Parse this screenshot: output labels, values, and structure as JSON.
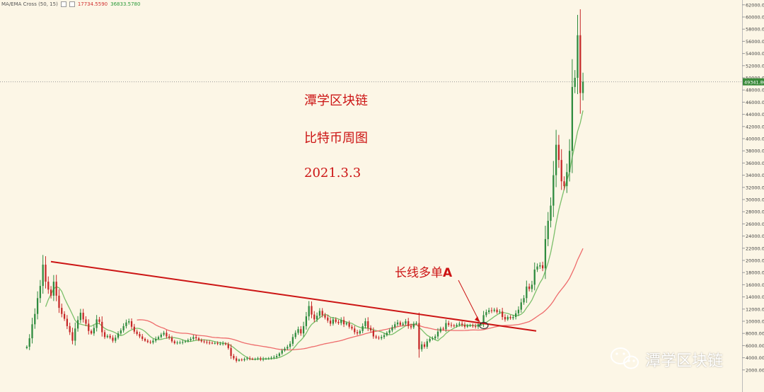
{
  "legend": {
    "indicator": "MA/EMA Cross (50, 15)",
    "value1": "17734.5590",
    "value2": "36833.5780"
  },
  "annotations": {
    "title": "潭学区块链",
    "subtitle": "比特币周图",
    "date": "2021.3.3",
    "long_label": "长线多单",
    "long_label_suffix": "A"
  },
  "watermark": {
    "text": "潭学区块链",
    "icon": "wechat-icon"
  },
  "colors": {
    "background": "#fcf6e6",
    "up": "#2e8b3e",
    "down": "#c62828",
    "ma_fast": "#7bbf6a",
    "ma_slow": "#ee6b6b",
    "trendline": "#cc1414",
    "annotation": "#cc1414"
  },
  "chart_data": {
    "type": "candlestick",
    "title": "",
    "y_axis": {
      "min": 0,
      "max": 62000,
      "position": "right",
      "tick_labels": [
        "2000.00",
        "4000.00",
        "6000.00",
        "8000.00",
        "10000.00",
        "12000.00",
        "14000.00",
        "16000.00",
        "18000.00",
        "20000.00",
        "22000.00",
        "24000.00",
        "26000.00",
        "28000.00",
        "30000.00",
        "32000.00",
        "34000.00",
        "36000.00",
        "38000.00",
        "40000.00",
        "42000.00",
        "44000.00",
        "46000.00",
        "48000.00",
        "50000.00",
        "52000.00",
        "54000.00",
        "56000.00",
        "58000.00",
        "60000.00",
        "62000.00"
      ]
    },
    "current_price_label": "49341.80",
    "current_price": 49341.8,
    "price_path": [
      5600,
      5800,
      7200,
      9500,
      11200,
      13800,
      15800,
      19300,
      16500,
      15200,
      14200,
      16500,
      14200,
      12200,
      11200,
      10400,
      9200,
      8200,
      6800,
      8800,
      10200,
      11400,
      10300,
      9600,
      8400,
      8000,
      8900,
      10300,
      9900,
      8200,
      7400,
      7600,
      7300,
      6800,
      7300,
      8000,
      8500,
      9200,
      9800,
      10000,
      9100,
      8300,
      7900,
      7500,
      7100,
      6800,
      6600,
      6500,
      6800,
      7100,
      7400,
      7800,
      8100,
      7500,
      7300,
      6700,
      6400,
      6500,
      6500,
      6600,
      6700,
      6900,
      7100,
      7400,
      7200,
      6900,
      6700,
      6600,
      6500,
      6450,
      6400,
      6400,
      6300,
      6300,
      6350,
      6200,
      5600,
      4300,
      3900,
      3500,
      3700,
      3600,
      3800,
      3900,
      3850,
      3750,
      3800,
      3900,
      3700,
      3800,
      3850,
      3900,
      4000,
      4100,
      4300,
      4700,
      5200,
      5500,
      5800,
      6300,
      7400,
      8100,
      8700,
      8000,
      9200,
      10800,
      12500,
      11100,
      10300,
      10900,
      11700,
      11000,
      10600,
      10100,
      9600,
      10300,
      9900,
      9700,
      10200,
      9500,
      9700,
      9100,
      8800,
      8200,
      8000,
      8400,
      9200,
      10000,
      8900,
      8500,
      7500,
      7300,
      7200,
      7400,
      7700,
      8100,
      8500,
      9000,
      9500,
      9800,
      9400,
      9600,
      10000,
      9200,
      9000,
      9600,
      9700,
      5400,
      6200,
      5800,
      6700,
      7100,
      7200,
      7500,
      8300,
      8800,
      8700,
      9700,
      9400,
      9300,
      9200,
      9400,
      9600,
      9400,
      9100,
      9300,
      9300,
      9200,
      9100,
      9500,
      9600,
      11000,
      11500,
      11800,
      11700,
      11900,
      11500,
      11600,
      10700,
      10300,
      10700,
      10500,
      10700,
      11300,
      11900,
      13100,
      13800,
      15700,
      15300,
      16000,
      18500,
      19000,
      19200,
      18700,
      23500,
      26500,
      29000,
      34000,
      39000,
      36500,
      33000,
      32200,
      34500,
      38000,
      48500,
      50000,
      57000,
      47500,
      49341.8
    ],
    "series": [
      {
        "name": "",
        "type": "moving-average"
      },
      {
        "name": "",
        "type": "moving-average"
      }
    ],
    "trendline": {
      "from": 19800,
      "to": 8400
    },
    "legend_position": "top-left",
    "grid": false
  }
}
